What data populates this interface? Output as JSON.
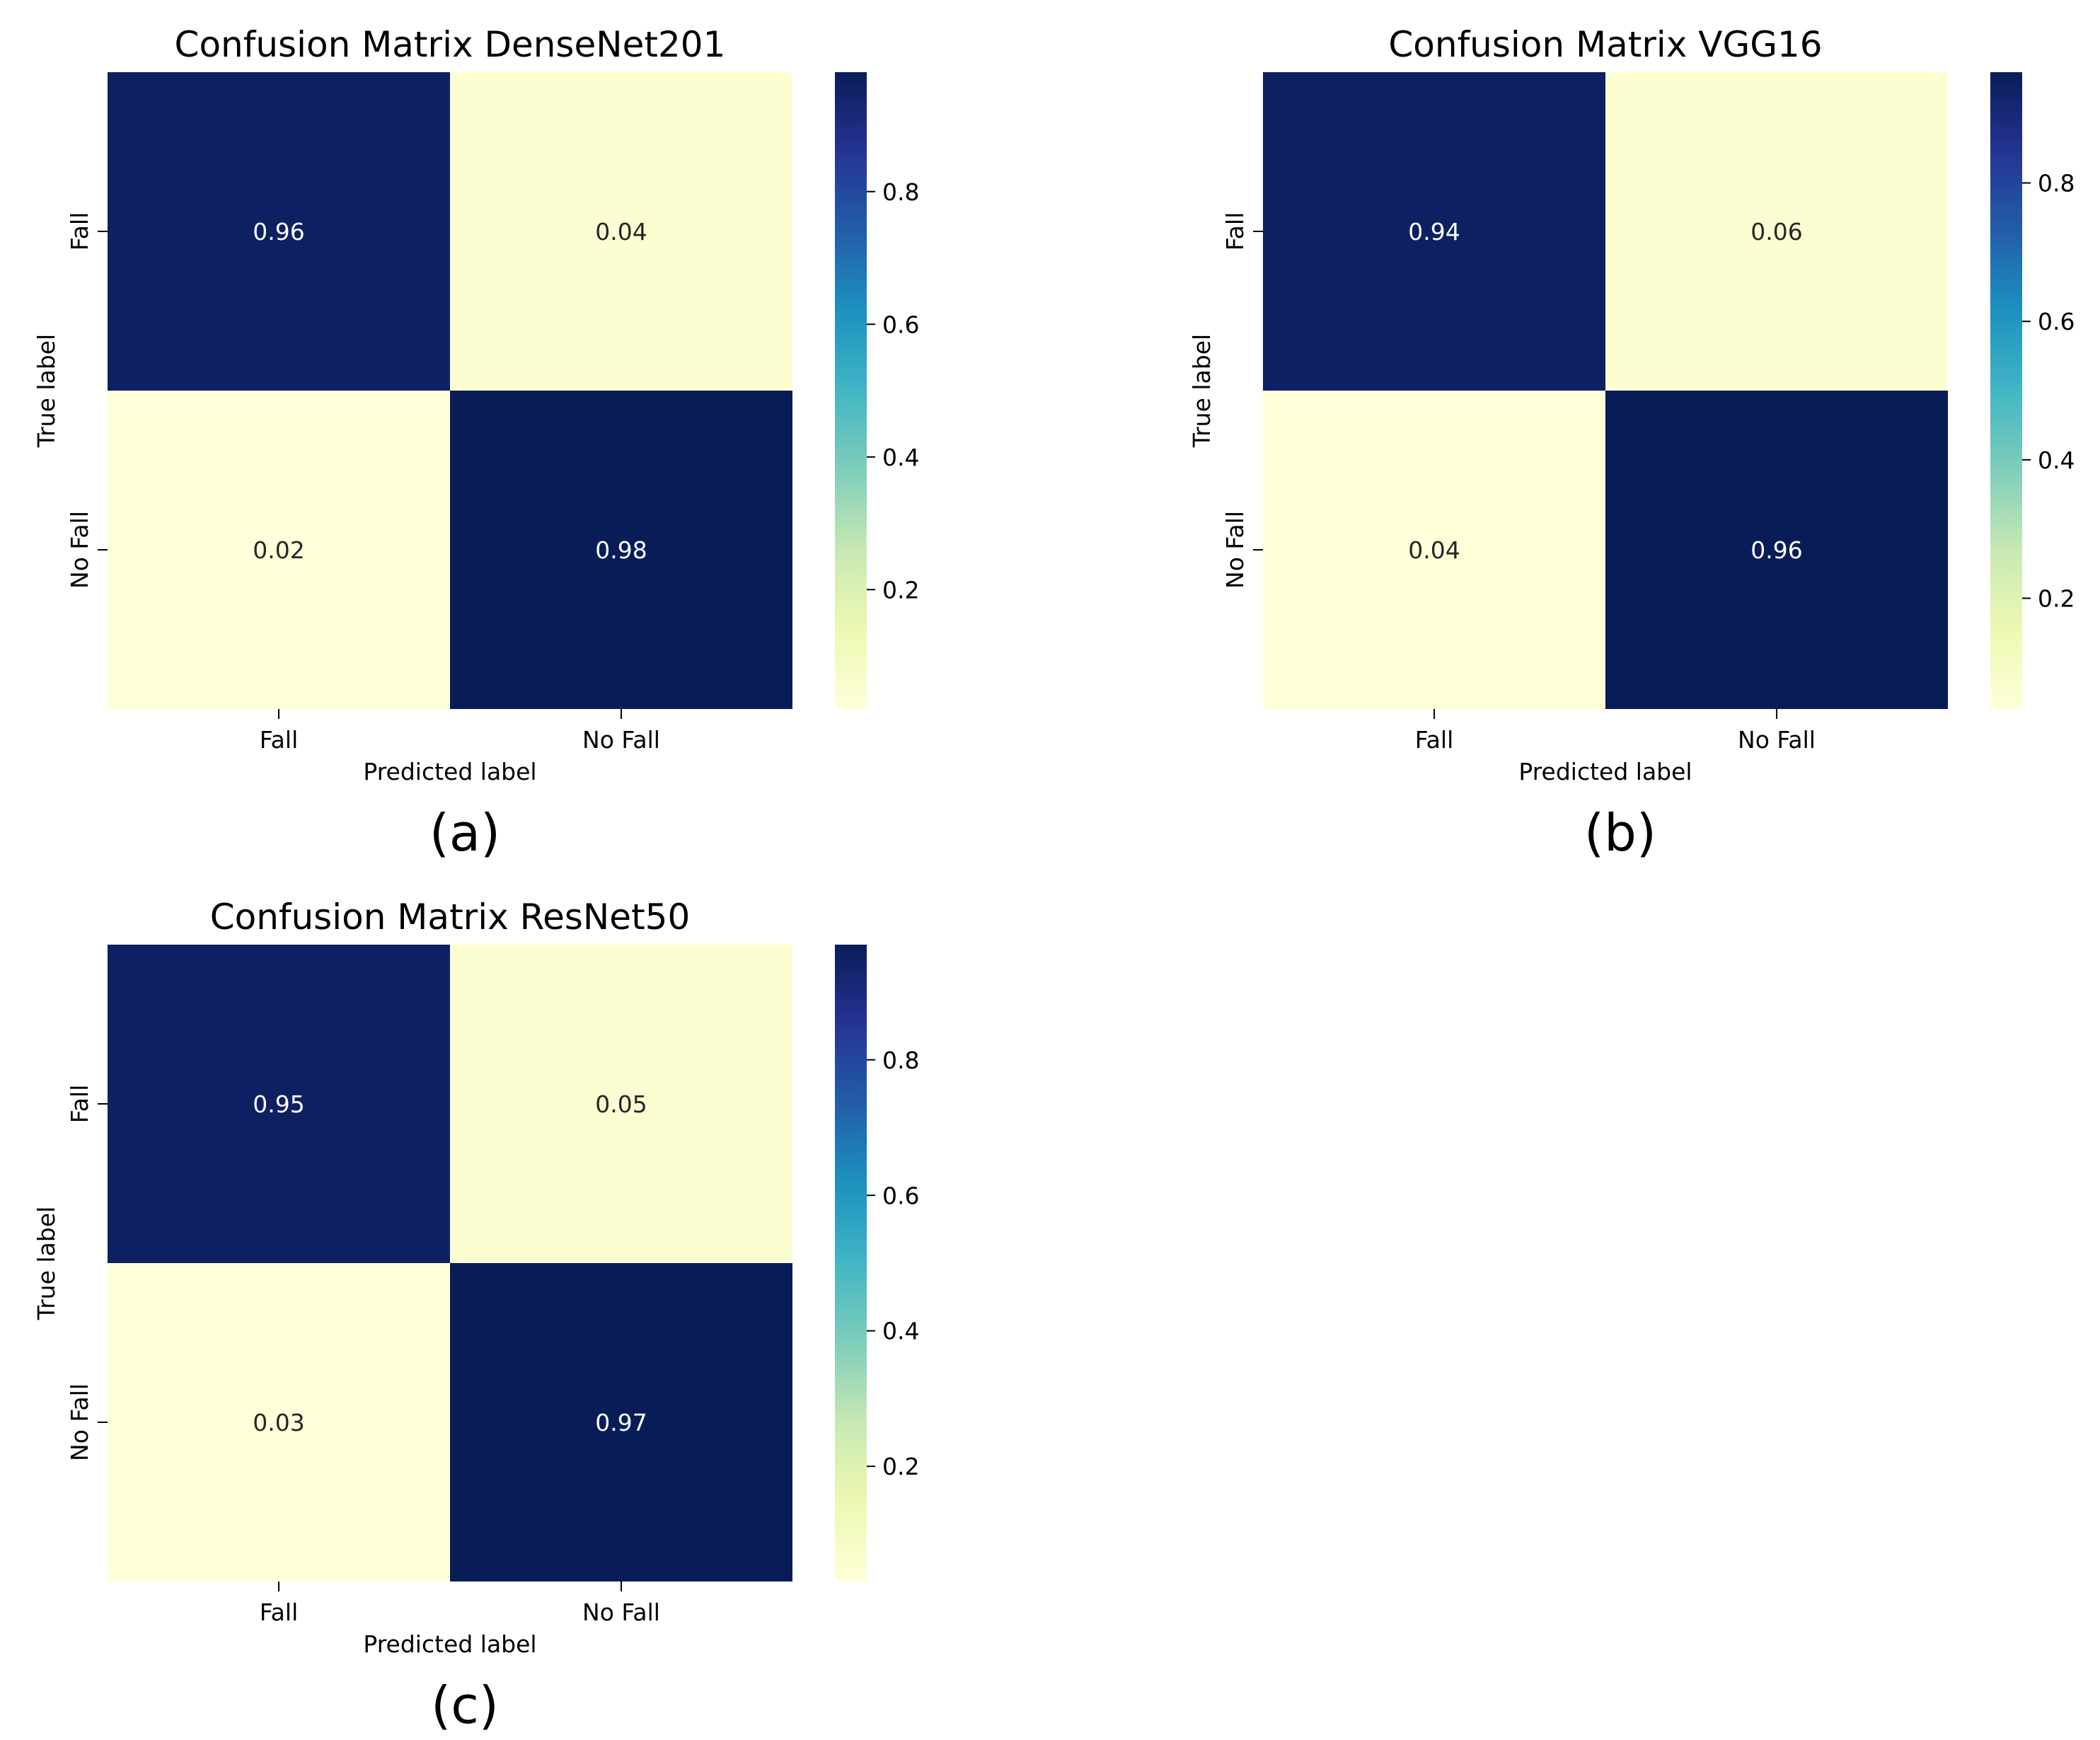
{
  "figure": {
    "background": "#ffffff"
  },
  "colormap": {
    "name": "YlGnBu",
    "stops": [
      "#ffffd9",
      "#edf8b1",
      "#c7e9b4",
      "#7fcdbb",
      "#41b6c4",
      "#1d91c0",
      "#225ea8",
      "#253494",
      "#081d58"
    ]
  },
  "chart_data": [
    {
      "type": "heatmap",
      "title": "Confusion Matrix DenseNet201",
      "panel_label": "(a)",
      "xlabel": "Predicted label",
      "ylabel": "True label",
      "x_categories": [
        "Fall",
        "No Fall"
      ],
      "y_categories": [
        "Fall",
        "No Fall"
      ],
      "values": [
        [
          0.96,
          0.04
        ],
        [
          0.02,
          0.98
        ]
      ],
      "value_labels": [
        [
          "0.96",
          "0.04"
        ],
        [
          "0.02",
          "0.98"
        ]
      ],
      "colorbar": {
        "range": [
          0.02,
          0.98
        ],
        "ticks": [
          0.2,
          0.4,
          0.6,
          0.8
        ],
        "tick_labels": [
          "0.2",
          "0.4",
          "0.6",
          "0.8"
        ]
      }
    },
    {
      "type": "heatmap",
      "title": "Confusion Matrix VGG16",
      "panel_label": "(b)",
      "xlabel": "Predicted label",
      "ylabel": "True label",
      "x_categories": [
        "Fall",
        "No Fall"
      ],
      "y_categories": [
        "Fall",
        "No Fall"
      ],
      "values": [
        [
          0.94,
          0.06
        ],
        [
          0.04,
          0.96
        ]
      ],
      "value_labels": [
        [
          "0.94",
          "0.06"
        ],
        [
          "0.04",
          "0.96"
        ]
      ],
      "colorbar": {
        "range": [
          0.04,
          0.96
        ],
        "ticks": [
          0.2,
          0.4,
          0.6,
          0.8
        ],
        "tick_labels": [
          "0.2",
          "0.4",
          "0.6",
          "0.8"
        ]
      }
    },
    {
      "type": "heatmap",
      "title": "Confusion Matrix ResNet50",
      "panel_label": "(c)",
      "xlabel": "Predicted label",
      "ylabel": "True label",
      "x_categories": [
        "Fall",
        "No Fall"
      ],
      "y_categories": [
        "Fall",
        "No Fall"
      ],
      "values": [
        [
          0.95,
          0.05
        ],
        [
          0.03,
          0.97
        ]
      ],
      "value_labels": [
        [
          "0.95",
          "0.05"
        ],
        [
          "0.03",
          "0.97"
        ]
      ],
      "colorbar": {
        "range": [
          0.03,
          0.97
        ],
        "ticks": [
          0.2,
          0.4,
          0.6,
          0.8
        ],
        "tick_labels": [
          "0.2",
          "0.4",
          "0.6",
          "0.8"
        ]
      }
    }
  ]
}
